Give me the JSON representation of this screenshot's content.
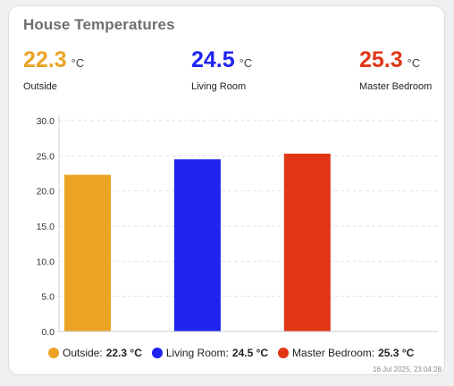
{
  "card": {
    "title": "House Temperatures",
    "timestamp": "16 Jul 2025, 23:04:28"
  },
  "sensors": [
    {
      "value": "22.3",
      "unit": "°C",
      "label": "Outside",
      "color": "#eba326"
    },
    {
      "value": "24.5",
      "unit": "°C",
      "label": "Living Room",
      "color": "#1f23f0"
    },
    {
      "value": "25.3",
      "unit": "°C",
      "label": "Master Bedroom",
      "color": "#e03616"
    }
  ],
  "legend": [
    {
      "label": "Outside:",
      "value": "22.3 °C",
      "color": "#eba326"
    },
    {
      "label": "Living Room:",
      "value": "24.5 °C",
      "color": "#1f23f0"
    },
    {
      "label": "Master Bedroom:",
      "value": "25.3 °C",
      "color": "#e03616"
    }
  ],
  "chart_data": {
    "type": "bar",
    "categories": [
      "Outside",
      "Living Room",
      "Master Bedroom"
    ],
    "values": [
      22.3,
      24.5,
      25.3
    ],
    "colors": [
      "#eba326",
      "#1f23f0",
      "#e03616"
    ],
    "ylim": [
      0,
      30
    ],
    "yticks": [
      "0.0",
      "5.0",
      "10.0",
      "15.0",
      "20.0",
      "25.0",
      "30.0"
    ],
    "grid": true,
    "legend_position": "bottom"
  }
}
